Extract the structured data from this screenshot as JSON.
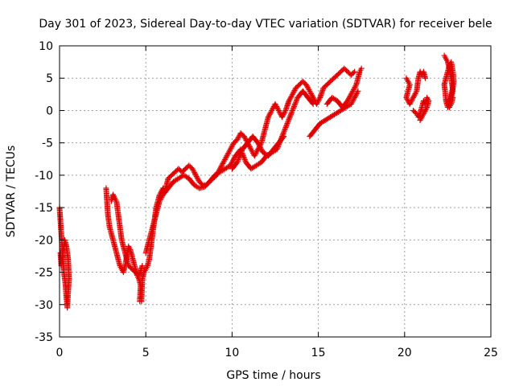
{
  "chart_data": {
    "type": "scatter",
    "title": "Day 301 of 2023, Sidereal Day-to-day VTEC variation (SDTVAR) for receiver bele",
    "xlabel": "GPS time / hours",
    "ylabel": "SDTVAR / TECUs",
    "xlim": [
      0,
      25
    ],
    "ylim": [
      -35,
      10
    ],
    "xticks": [
      0,
      5,
      10,
      15,
      20,
      25
    ],
    "yticks": [
      -35,
      -30,
      -25,
      -20,
      -15,
      -10,
      -5,
      0,
      5,
      10
    ],
    "grid": true,
    "marker": "+",
    "color": "#e00000",
    "series": [
      {
        "name": "SDTVAR",
        "segments": [
          [
            [
              0.0,
              -15
            ],
            [
              0.05,
              -17
            ],
            [
              0.1,
              -19
            ],
            [
              0.15,
              -21
            ],
            [
              0.2,
              -23
            ],
            [
              0.25,
              -25
            ],
            [
              0.3,
              -26
            ],
            [
              0.35,
              -27
            ],
            [
              0.4,
              -29
            ],
            [
              0.45,
              -30.5
            ],
            [
              0.5,
              -28
            ],
            [
              0.55,
              -26
            ],
            [
              0.5,
              -23
            ],
            [
              0.4,
              -21
            ],
            [
              0.3,
              -20
            ],
            [
              0.2,
              -22
            ],
            [
              0.1,
              -24
            ],
            [
              0.05,
              -22
            ]
          ],
          [
            [
              2.7,
              -12
            ],
            [
              2.75,
              -14
            ],
            [
              2.8,
              -16
            ],
            [
              2.9,
              -18
            ],
            [
              3.0,
              -19
            ],
            [
              3.1,
              -20
            ],
            [
              3.2,
              -21
            ],
            [
              3.3,
              -22
            ],
            [
              3.4,
              -23
            ],
            [
              3.5,
              -24
            ],
            [
              3.6,
              -24.5
            ],
            [
              3.7,
              -25
            ],
            [
              3.8,
              -24
            ],
            [
              3.9,
              -22.5
            ],
            [
              4.0,
              -21
            ],
            [
              4.1,
              -21.5
            ],
            [
              4.2,
              -22.5
            ],
            [
              4.3,
              -23.5
            ],
            [
              4.4,
              -24.5
            ],
            [
              4.5,
              -25.5
            ],
            [
              4.6,
              -26
            ],
            [
              4.7,
              -27
            ],
            [
              4.65,
              -29.5
            ],
            [
              4.75,
              -29.5
            ],
            [
              4.8,
              -26
            ],
            [
              4.9,
              -25
            ],
            [
              5.0,
              -24.5
            ],
            [
              5.1,
              -24
            ],
            [
              5.2,
              -23
            ],
            [
              5.3,
              -21
            ],
            [
              5.4,
              -19
            ],
            [
              5.5,
              -17
            ],
            [
              5.6,
              -15
            ],
            [
              5.7,
              -14
            ],
            [
              5.8,
              -13
            ],
            [
              5.9,
              -12.5
            ],
            [
              6.0,
              -12
            ],
            [
              6.1,
              -12.5
            ],
            [
              6.2,
              -11.5
            ],
            [
              6.3,
              -10.5
            ],
            [
              6.5,
              -10
            ],
            [
              6.7,
              -9.5
            ],
            [
              6.9,
              -9
            ],
            [
              7.1,
              -9.5
            ],
            [
              7.3,
              -9
            ],
            [
              7.5,
              -8.5
            ],
            [
              7.7,
              -9
            ],
            [
              7.9,
              -10
            ],
            [
              8.1,
              -11
            ],
            [
              8.3,
              -11.5
            ],
            [
              8.5,
              -11.5
            ],
            [
              8.7,
              -11
            ],
            [
              8.9,
              -10.5
            ],
            [
              9.1,
              -10
            ],
            [
              9.3,
              -9
            ],
            [
              9.5,
              -8
            ],
            [
              9.7,
              -7
            ],
            [
              9.9,
              -6
            ],
            [
              10.1,
              -5
            ],
            [
              10.3,
              -4.5
            ],
            [
              10.5,
              -3.5
            ],
            [
              10.7,
              -4
            ],
            [
              10.9,
              -5
            ],
            [
              11.1,
              -6
            ],
            [
              11.3,
              -7
            ],
            [
              11.5,
              -6
            ],
            [
              11.7,
              -5
            ],
            [
              11.9,
              -3
            ],
            [
              12.1,
              -1
            ],
            [
              12.3,
              0
            ],
            [
              12.5,
              1
            ],
            [
              12.7,
              0
            ],
            [
              12.9,
              -1
            ],
            [
              13.1,
              0
            ],
            [
              13.3,
              1.5
            ],
            [
              13.5,
              2.5
            ],
            [
              13.7,
              3.5
            ],
            [
              13.9,
              4
            ],
            [
              14.1,
              4.5
            ],
            [
              14.3,
              4
            ],
            [
              14.5,
              3
            ],
            [
              14.7,
              2
            ],
            [
              14.9,
              1
            ],
            [
              15.1,
              2
            ],
            [
              15.3,
              3.5
            ],
            [
              15.5,
              4
            ],
            [
              15.7,
              4.5
            ],
            [
              15.9,
              5
            ],
            [
              16.1,
              5.5
            ],
            [
              16.3,
              6
            ],
            [
              16.5,
              6.5
            ],
            [
              16.7,
              6
            ],
            [
              16.9,
              5.5
            ],
            [
              17.1,
              6
            ]
          ],
          [
            [
              3.0,
              -14
            ],
            [
              3.1,
              -13
            ],
            [
              3.2,
              -13.5
            ],
            [
              3.3,
              -14
            ],
            [
              3.4,
              -16
            ],
            [
              3.5,
              -18
            ],
            [
              3.6,
              -20
            ],
            [
              3.7,
              -21
            ],
            [
              3.8,
              -22
            ],
            [
              3.9,
              -23
            ],
            [
              4.0,
              -24
            ],
            [
              4.2,
              -24.5
            ],
            [
              4.4,
              -25
            ],
            [
              4.6,
              -25.5
            ],
            [
              4.8,
              -24
            ]
          ],
          [
            [
              5.0,
              -22
            ],
            [
              5.2,
              -20
            ],
            [
              5.4,
              -18
            ],
            [
              5.6,
              -16
            ],
            [
              5.8,
              -14
            ],
            [
              6.0,
              -13
            ],
            [
              6.3,
              -12
            ],
            [
              6.6,
              -11
            ],
            [
              6.9,
              -10.5
            ],
            [
              7.2,
              -10
            ],
            [
              7.5,
              -10.5
            ],
            [
              7.8,
              -11.5
            ],
            [
              8.1,
              -12
            ],
            [
              8.4,
              -11.8
            ],
            [
              8.7,
              -11
            ],
            [
              9.0,
              -10
            ],
            [
              9.3,
              -9.5
            ],
            [
              9.6,
              -9
            ],
            [
              9.9,
              -8.5
            ],
            [
              10.2,
              -7
            ],
            [
              10.5,
              -6
            ],
            [
              10.8,
              -8
            ],
            [
              11.1,
              -9
            ],
            [
              11.4,
              -8.5
            ],
            [
              11.7,
              -8
            ],
            [
              12.0,
              -7
            ],
            [
              12.3,
              -6.5
            ],
            [
              12.6,
              -6
            ],
            [
              12.9,
              -4
            ],
            [
              13.2,
              -2
            ],
            [
              13.5,
              0
            ],
            [
              13.8,
              2
            ],
            [
              14.1,
              3
            ],
            [
              14.4,
              2
            ],
            [
              14.7,
              1
            ]
          ],
          [
            [
              10.0,
              -9
            ],
            [
              10.3,
              -8
            ],
            [
              10.6,
              -6
            ],
            [
              10.9,
              -5
            ],
            [
              11.2,
              -4
            ],
            [
              11.5,
              -5
            ],
            [
              11.8,
              -6.5
            ],
            [
              12.1,
              -7
            ],
            [
              12.4,
              -6
            ],
            [
              12.7,
              -5
            ],
            [
              13.0,
              -4
            ]
          ],
          [
            [
              14.5,
              -4
            ],
            [
              14.8,
              -3
            ],
            [
              15.1,
              -2
            ],
            [
              15.4,
              -1.5
            ],
            [
              15.7,
              -1
            ],
            [
              16.0,
              -0.5
            ],
            [
              16.3,
              0
            ],
            [
              16.6,
              0.5
            ],
            [
              16.9,
              1
            ],
            [
              17.1,
              2
            ],
            [
              17.3,
              3
            ]
          ],
          [
            [
              15.5,
              1
            ],
            [
              15.8,
              2
            ],
            [
              16.1,
              1.5
            ],
            [
              16.4,
              0.5
            ],
            [
              16.7,
              1.5
            ],
            [
              17.0,
              3
            ],
            [
              17.2,
              4
            ],
            [
              17.4,
              6
            ],
            [
              17.5,
              6.5
            ]
          ],
          [
            [
              20.1,
              5
            ],
            [
              20.2,
              4.5
            ],
            [
              20.3,
              4
            ],
            [
              20.2,
              3
            ],
            [
              20.1,
              2
            ],
            [
              20.3,
              1
            ],
            [
              20.5,
              2
            ],
            [
              20.7,
              3
            ],
            [
              20.8,
              5
            ],
            [
              20.9,
              6
            ],
            [
              21.0,
              5.5
            ],
            [
              21.1,
              6
            ],
            [
              21.2,
              5
            ]
          ],
          [
            [
              20.5,
              0
            ],
            [
              20.7,
              -0.5
            ],
            [
              20.8,
              -1
            ],
            [
              20.9,
              -0.5
            ],
            [
              21.0,
              0.5
            ],
            [
              21.1,
              1.5
            ],
            [
              21.2,
              1
            ],
            [
              21.3,
              2
            ],
            [
              21.4,
              1.5
            ],
            [
              21.3,
              0.5
            ],
            [
              21.1,
              -0.5
            ],
            [
              20.9,
              -1.5
            ]
          ],
          [
            [
              22.3,
              8.5
            ],
            [
              22.4,
              8
            ],
            [
              22.5,
              7.5
            ],
            [
              22.6,
              6.5
            ],
            [
              22.7,
              5
            ],
            [
              22.75,
              4
            ],
            [
              22.8,
              3
            ],
            [
              22.7,
              2
            ],
            [
              22.6,
              1
            ],
            [
              22.5,
              0.5
            ],
            [
              22.4,
              1.5
            ],
            [
              22.35,
              3
            ],
            [
              22.3,
              4
            ],
            [
              22.4,
              5
            ],
            [
              22.5,
              6
            ],
            [
              22.6,
              7
            ],
            [
              22.7,
              7.5
            ],
            [
              22.8,
              6
            ],
            [
              22.85,
              4.5
            ],
            [
              22.8,
              3.5
            ],
            [
              22.7,
              2.5
            ],
            [
              22.6,
              1.5
            ],
            [
              22.5,
              1.5
            ],
            [
              22.6,
              0.5
            ],
            [
              22.7,
              1
            ],
            [
              22.8,
              2
            ]
          ]
        ]
      }
    ]
  }
}
